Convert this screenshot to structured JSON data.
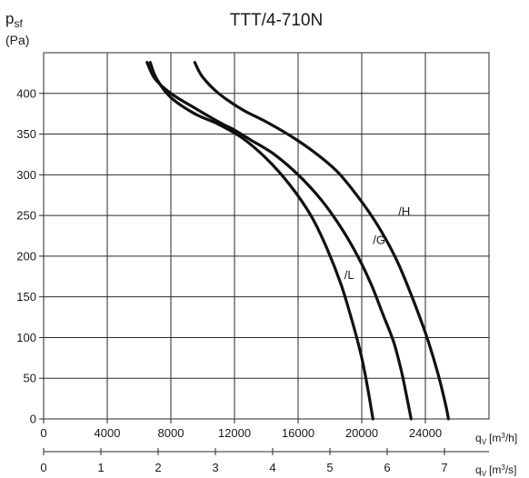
{
  "chart_data": {
    "type": "line",
    "title": "TTT/4-710N",
    "ylabel": {
      "symbol": "p",
      "sub": "sf",
      "unit": "(Pa)"
    },
    "xlabel_primary": {
      "symbol": "q",
      "sub": "V",
      "unit_pre": "[m",
      "unit_sup": "3",
      "unit_post": "/h]"
    },
    "xlabel_secondary": {
      "symbol": "q",
      "sub": "V",
      "unit_pre": "[m",
      "unit_sup": "3",
      "unit_post": "/s]"
    },
    "xlim": [
      0,
      28000
    ],
    "ylim": [
      0,
      450
    ],
    "x_ticks": [
      "0",
      "4000",
      "8000",
      "12000",
      "16000",
      "20000",
      "24000"
    ],
    "x_tick_values": [
      0,
      4000,
      8000,
      12000,
      16000,
      20000,
      24000
    ],
    "x2_ticks": [
      "0",
      "1",
      "2",
      "3",
      "4",
      "5",
      "6",
      "7"
    ],
    "x2_tick_values": [
      0,
      1,
      2,
      3,
      4,
      5,
      6,
      7
    ],
    "x2_unit_factor": 3600,
    "y_ticks": [
      "0",
      "50",
      "100",
      "150",
      "200",
      "250",
      "300",
      "350",
      "400"
    ],
    "y_tick_values": [
      0,
      50,
      100,
      150,
      200,
      250,
      300,
      350,
      400
    ],
    "grid": true,
    "series": [
      {
        "name": "/L",
        "label_at": [
          18900,
          172
        ],
        "points": [
          [
            6700,
            438
          ],
          [
            7100,
            418
          ],
          [
            8000,
            395
          ],
          [
            9500,
            375
          ],
          [
            11000,
            362
          ],
          [
            12500,
            345
          ],
          [
            14000,
            320
          ],
          [
            15500,
            287
          ],
          [
            16800,
            250
          ],
          [
            17800,
            210
          ],
          [
            18700,
            165
          ],
          [
            19400,
            120
          ],
          [
            20000,
            75
          ],
          [
            20400,
            35
          ],
          [
            20700,
            0
          ]
        ]
      },
      {
        "name": "/G",
        "label_at": [
          20700,
          215
        ],
        "points": [
          [
            6500,
            438
          ],
          [
            7000,
            418
          ],
          [
            8000,
            400
          ],
          [
            9500,
            382
          ],
          [
            11000,
            365
          ],
          [
            12000,
            355
          ],
          [
            13000,
            343
          ],
          [
            14500,
            325
          ],
          [
            16000,
            300
          ],
          [
            17500,
            268
          ],
          [
            18800,
            232
          ],
          [
            19800,
            198
          ],
          [
            20600,
            165
          ],
          [
            21300,
            130
          ],
          [
            22000,
            95
          ],
          [
            22500,
            58
          ],
          [
            22900,
            20
          ],
          [
            23100,
            0
          ]
        ]
      },
      {
        "name": "/H",
        "label_at": [
          22300,
          250
        ],
        "points": [
          [
            9500,
            438
          ],
          [
            10000,
            420
          ],
          [
            11000,
            400
          ],
          [
            12500,
            380
          ],
          [
            14000,
            365
          ],
          [
            15500,
            348
          ],
          [
            17000,
            328
          ],
          [
            18500,
            303
          ],
          [
            19800,
            272
          ],
          [
            21000,
            238
          ],
          [
            22200,
            195
          ],
          [
            23200,
            148
          ],
          [
            24100,
            100
          ],
          [
            24800,
            55
          ],
          [
            25300,
            15
          ],
          [
            25450,
            0
          ]
        ]
      }
    ]
  }
}
